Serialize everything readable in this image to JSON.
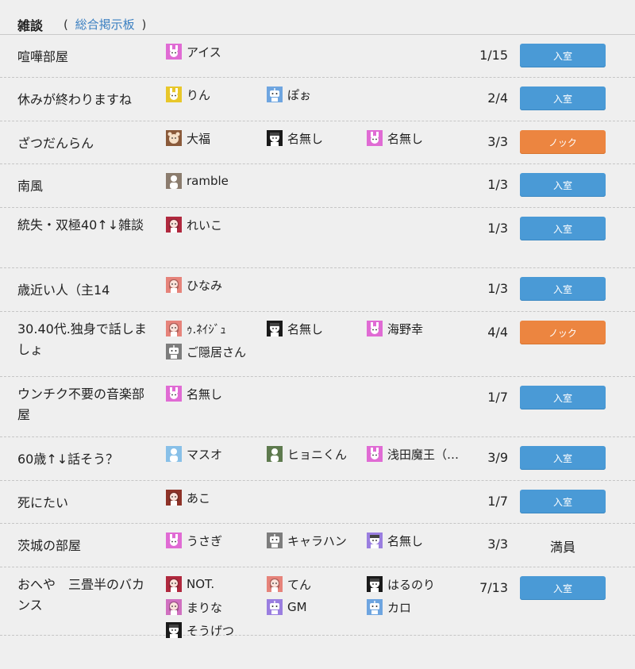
{
  "header": {
    "title": "雑談",
    "open_paren": "(",
    "link": "総合掲示板",
    "close_paren": ")"
  },
  "rooms": [
    {
      "name": "喧嘩部屋",
      "count": "1/15",
      "action": "入室",
      "action_type": "enter",
      "users": [
        {
          "name": "アイス",
          "color": "#e06bd4",
          "icon": "rabbit-icon"
        }
      ]
    },
    {
      "name": "休みが終わりますね",
      "count": "2/4",
      "action": "入室",
      "action_type": "enter",
      "users": [
        {
          "name": "りん",
          "color": "#e8c72a",
          "icon": "rabbit-icon"
        },
        {
          "name": "ぽぉ",
          "color": "#6ea5e0",
          "icon": "robot-icon"
        }
      ]
    },
    {
      "name": "ざつだんらん",
      "count": "3/3",
      "action": "ノック",
      "action_type": "knock",
      "users": [
        {
          "name": "大福",
          "color": "#8a5a3a",
          "icon": "bear-icon"
        },
        {
          "name": "名無し",
          "color": "#1a1a1a",
          "icon": "face-icon"
        },
        {
          "name": "名無し",
          "color": "#e06bd4",
          "icon": "rabbit-icon"
        }
      ]
    },
    {
      "name": "南風",
      "count": "1/3",
      "action": "入室",
      "action_type": "enter",
      "users": [
        {
          "name": "ramble",
          "color": "#8b7c6e",
          "icon": "person-icon"
        }
      ]
    },
    {
      "name": "統失・双極40↑↓雑談",
      "count": "1/3",
      "action": "入室",
      "action_type": "enter",
      "users": [
        {
          "name": "れいこ",
          "color": "#b0283e",
          "icon": "girl-icon"
        }
      ]
    },
    {
      "name": "歳近い人（主14",
      "count": "1/3",
      "action": "入室",
      "action_type": "enter",
      "users": [
        {
          "name": "ひなみ",
          "color": "#e6837a",
          "icon": "girl-icon"
        }
      ]
    },
    {
      "name": "30.40代.独身で話しましょ",
      "count": "4/4",
      "action": "ノック",
      "action_type": "knock",
      "users": [
        {
          "name": "ｩ.ﾈｲｼﾞｭ",
          "color": "#e6837a",
          "icon": "girl-icon"
        },
        {
          "name": "名無し",
          "color": "#1a1a1a",
          "icon": "face-icon"
        },
        {
          "name": "海野幸",
          "color": "#e06bd4",
          "icon": "rabbit-icon"
        },
        {
          "name": "ご隠居さん",
          "color": "#7d7d7d",
          "icon": "robot-icon"
        }
      ]
    },
    {
      "name": "ウンチク不要の音楽部屋",
      "count": "1/7",
      "action": "入室",
      "action_type": "enter",
      "users": [
        {
          "name": "名無し",
          "color": "#e06bd4",
          "icon": "rabbit-icon"
        }
      ]
    },
    {
      "name": "60歳↑↓話そう？",
      "count": "3/9",
      "action": "入室",
      "action_type": "enter",
      "users": [
        {
          "name": "マスオ",
          "color": "#88c0e8",
          "icon": "person-icon"
        },
        {
          "name": "ヒョニくん",
          "color": "#5e7a4e",
          "icon": "person-icon"
        },
        {
          "name": "浅田魔王（…",
          "color": "#e06bd4",
          "icon": "rabbit-icon"
        }
      ]
    },
    {
      "name": "死にたい",
      "count": "1/7",
      "action": "入室",
      "action_type": "enter",
      "users": [
        {
          "name": "あこ",
          "color": "#8e3328",
          "icon": "girl-icon"
        }
      ]
    },
    {
      "name": "茨城の部屋",
      "count": "3/3",
      "action": "満員",
      "action_type": "full",
      "users": [
        {
          "name": "うさぎ",
          "color": "#e06bd4",
          "icon": "rabbit-icon"
        },
        {
          "name": "キャラハン",
          "color": "#7d7d7d",
          "icon": "robot-icon"
        },
        {
          "name": "名無し",
          "color": "#9a7ee0",
          "icon": "face-icon"
        }
      ]
    },
    {
      "name": "おへや　三畳半のバカンス",
      "count": "7/13",
      "action": "入室",
      "action_type": "enter",
      "users": [
        {
          "name": "NOT.",
          "color": "#b0283e",
          "icon": "girl-icon"
        },
        {
          "name": "てん",
          "color": "#e6837a",
          "icon": "girl-icon"
        },
        {
          "name": "はるのり",
          "color": "#1a1a1a",
          "icon": "face-icon"
        },
        {
          "name": "まりな",
          "color": "#d070c0",
          "icon": "girl-icon"
        },
        {
          "name": "GM",
          "color": "#9a7ee0",
          "icon": "robot-icon"
        },
        {
          "name": "カロ",
          "color": "#6ea5e0",
          "icon": "robot-icon"
        },
        {
          "name": "そうげつ",
          "color": "#1a1a1a",
          "icon": "face-icon"
        }
      ]
    }
  ]
}
